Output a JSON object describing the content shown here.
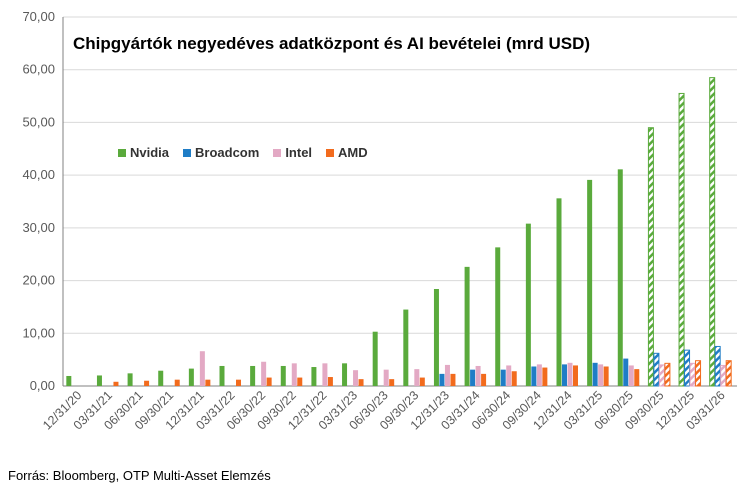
{
  "chart_data": {
    "type": "bar",
    "title": "Chipgyártók negyedéves adatközpont és AI bevételei (mrd USD)",
    "xlabel": "",
    "ylabel": "",
    "ylim": [
      0,
      70
    ],
    "yticks": [
      "0,00",
      "10,00",
      "20,00",
      "30,00",
      "40,00",
      "50,00",
      "60,00",
      "70,00"
    ],
    "grid": true,
    "legend_position": "top-left",
    "categories": [
      "12/31/20",
      "03/31/21",
      "06/30/21",
      "09/30/21",
      "12/31/21",
      "03/31/22",
      "06/30/22",
      "09/30/22",
      "12/31/22",
      "03/31/23",
      "06/30/23",
      "09/30/23",
      "12/31/23",
      "03/31/24",
      "06/30/24",
      "09/30/24",
      "12/31/24",
      "03/31/25",
      "06/30/25",
      "09/30/25",
      "12/31/25",
      "03/31/26"
    ],
    "forecast_categories": [
      "09/30/25",
      "12/31/25",
      "03/31/26"
    ],
    "series": [
      {
        "name": "Nvidia",
        "color": "#5aaa3c",
        "values": [
          1.9,
          2.0,
          2.4,
          2.9,
          3.3,
          3.8,
          3.8,
          3.8,
          3.6,
          4.3,
          10.3,
          14.5,
          18.4,
          22.6,
          26.3,
          30.8,
          35.6,
          39.1,
          41.1,
          49.0,
          55.5,
          58.5
        ]
      },
      {
        "name": "Broadcom",
        "color": "#1f7dc6",
        "values": [
          null,
          null,
          null,
          null,
          null,
          null,
          null,
          null,
          null,
          null,
          null,
          null,
          2.3,
          3.1,
          3.1,
          3.7,
          4.1,
          4.4,
          5.2,
          6.2,
          6.8,
          7.5
        ]
      },
      {
        "name": "Intel",
        "color": "#e3a9c4",
        "values": [
          null,
          null,
          null,
          null,
          6.6,
          null,
          4.6,
          4.3,
          4.3,
          3.0,
          3.1,
          3.2,
          4.0,
          3.8,
          3.9,
          4.1,
          4.4,
          4.1,
          3.9,
          4.0,
          4.3,
          3.9
        ]
      },
      {
        "name": "AMD",
        "color": "#f26b1d",
        "values": [
          null,
          0.8,
          1.0,
          1.2,
          1.2,
          1.2,
          1.6,
          1.6,
          1.7,
          1.3,
          1.3,
          1.6,
          2.3,
          2.3,
          2.8,
          3.5,
          3.9,
          3.7,
          3.2,
          4.3,
          4.8,
          4.8
        ]
      }
    ]
  },
  "source": "Forrás: Bloomberg, OTP Multi-Asset Elemzés"
}
